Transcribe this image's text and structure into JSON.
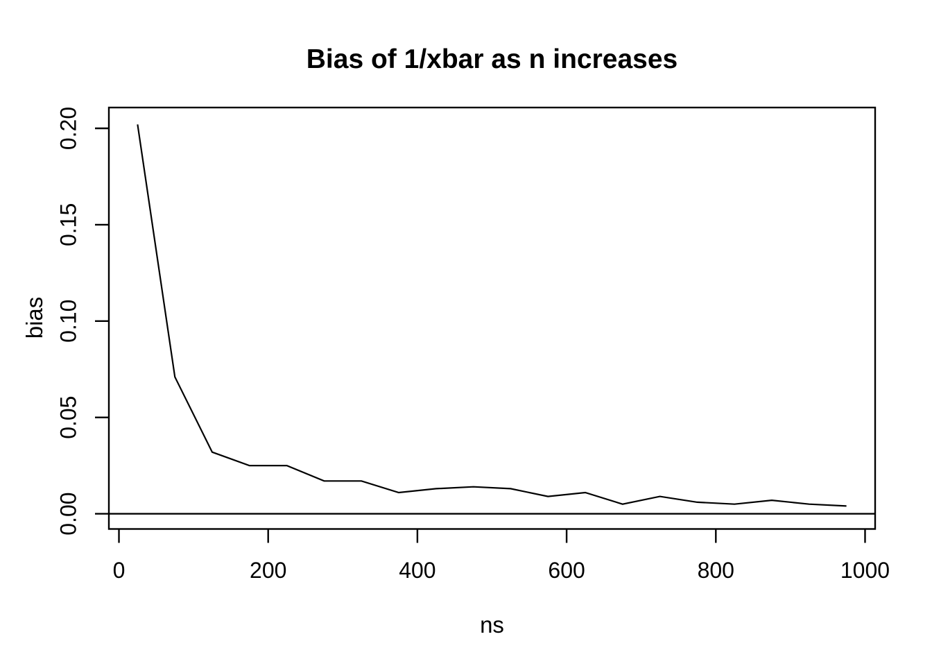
{
  "page": {
    "background": "#ffffff",
    "foreground": "#000000"
  },
  "chart_data": {
    "type": "line",
    "title": "Bias of 1/xbar as n increases",
    "xlabel": "ns",
    "ylabel": "bias",
    "series": [
      {
        "name": "bias",
        "x": [
          25,
          75,
          125,
          175,
          225,
          275,
          325,
          375,
          425,
          475,
          525,
          575,
          625,
          675,
          725,
          775,
          825,
          875,
          925,
          975
        ],
        "y": [
          0.202,
          0.071,
          0.032,
          0.025,
          0.025,
          0.017,
          0.017,
          0.011,
          0.013,
          0.014,
          0.013,
          0.009,
          0.011,
          0.005,
          0.009,
          0.006,
          0.005,
          0.007,
          0.005,
          0.004
        ]
      }
    ],
    "xticks": {
      "values": [
        0,
        200,
        400,
        600,
        800,
        1000
      ],
      "labels": [
        "0",
        "200",
        "400",
        "600",
        "800",
        "1000"
      ]
    },
    "yticks": {
      "values": [
        0,
        0.05,
        0.1,
        0.15,
        0.2
      ],
      "labels": [
        "0.00",
        "0.05",
        "0.10",
        "0.15",
        "0.20"
      ]
    },
    "xlim": [
      -13.5,
      1013.5
    ],
    "ylim": [
      -0.0079,
      0.2108
    ],
    "hline": 0,
    "line_color": "#000000",
    "axis_color": "#000000",
    "grid": false,
    "legend": "none"
  }
}
